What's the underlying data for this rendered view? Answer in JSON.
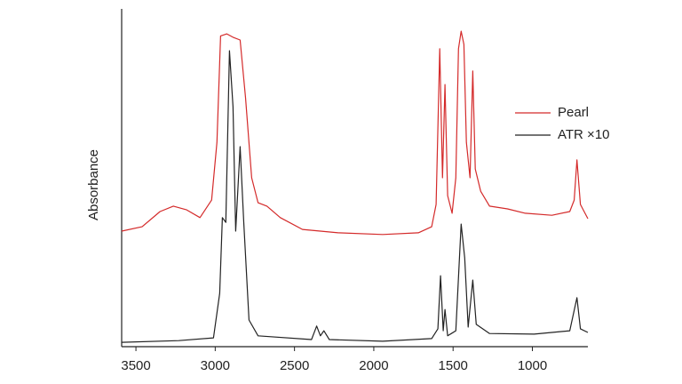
{
  "chart_data": {
    "type": "line",
    "y_label": "Absorbance",
    "xlim": [
      3590,
      650
    ],
    "xticks": [
      3500,
      3000,
      2500,
      2000,
      1500,
      1000
    ],
    "ylim": [
      0,
      100
    ],
    "grid": false,
    "legend": "right",
    "series": [
      {
        "name": "Pearl",
        "color": "#d42a2a",
        "x": [
          3590,
          3461,
          3348,
          3264,
          3180,
          3096,
          3023,
          2989,
          2966,
          2927,
          2888,
          2843,
          2809,
          2770,
          2730,
          2674,
          2590,
          2450,
          2225,
          1944,
          1719,
          1635,
          1607,
          1584,
          1567,
          1551,
          1534,
          1506,
          1483,
          1466,
          1449,
          1432,
          1416,
          1393,
          1376,
          1360,
          1326,
          1270,
          1157,
          1045,
          877,
          764,
          736,
          719,
          697,
          650
        ],
        "values": [
          34.2,
          35.5,
          40,
          41.6,
          40.5,
          38.2,
          43.4,
          60.5,
          92,
          92.6,
          91.6,
          90.8,
          73.7,
          50,
          42.6,
          41.6,
          38.2,
          34.7,
          33.7,
          33.2,
          33.7,
          35.5,
          42.1,
          88.2,
          50,
          77.6,
          44.7,
          39.5,
          50,
          88.2,
          93.4,
          89.5,
          60.5,
          50,
          81.6,
          52.6,
          46,
          41.6,
          40.8,
          39.5,
          38.9,
          40,
          43.4,
          55.3,
          42.1,
          37.9
        ]
      },
      {
        "name": "ATR ×10",
        "color": "#222222",
        "x": [
          3590,
          3230,
          3011,
          2972,
          2955,
          2933,
          2910,
          2888,
          2871,
          2843,
          2820,
          2787,
          2730,
          2393,
          2360,
          2337,
          2315,
          2281,
          1944,
          1635,
          1596,
          1579,
          1562,
          1551,
          1534,
          1483,
          1449,
          1427,
          1405,
          1376,
          1354,
          1270,
          989,
          764,
          719,
          697,
          650
        ],
        "values": [
          1.3,
          1.8,
          2.6,
          15.8,
          38.2,
          36.8,
          87.6,
          71,
          34.2,
          59.2,
          36.8,
          7.9,
          3.2,
          2.1,
          6.1,
          3.2,
          4.7,
          2.1,
          1.6,
          2.4,
          5.3,
          21,
          4.7,
          11,
          3.2,
          4.7,
          36.3,
          26.3,
          5.8,
          19.7,
          6.6,
          3.9,
          3.7,
          4.7,
          14.5,
          5.3,
          4.2
        ]
      }
    ]
  }
}
